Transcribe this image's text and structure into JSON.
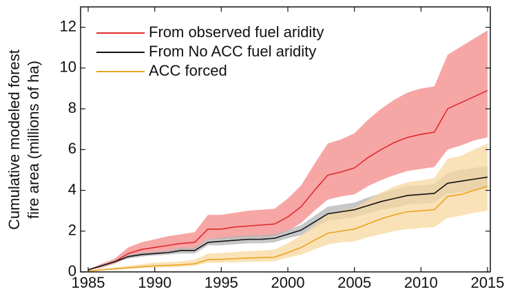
{
  "chart_data": {
    "type": "line",
    "ylabel": [
      "Cumulative modeled forest",
      "fire area (millions of ha)"
    ],
    "x": [
      1985,
      1986,
      1987,
      1988,
      1989,
      1990,
      1991,
      1992,
      1993,
      1994,
      1995,
      1996,
      1997,
      1998,
      1999,
      2000,
      2001,
      2002,
      2003,
      2004,
      2005,
      2006,
      2007,
      2008,
      2009,
      2010,
      2011,
      2012,
      2013,
      2014,
      2015
    ],
    "xlim": [
      1984.43,
      2015.21
    ],
    "xticks": [
      1985,
      1990,
      1995,
      2000,
      2005,
      2010,
      2015
    ],
    "ylim": [
      0,
      13
    ],
    "yticks": [
      0,
      2,
      4,
      6,
      8,
      10,
      12
    ],
    "legend": "upper left",
    "series": [
      {
        "name": "From observed fuel aridity",
        "color": "#e0282a",
        "band_color": "#f7a6a6",
        "values": [
          0.1,
          0.3,
          0.5,
          0.9,
          1.1,
          1.2,
          1.3,
          1.4,
          1.45,
          2.1,
          2.1,
          2.2,
          2.25,
          2.3,
          2.35,
          2.7,
          3.2,
          4.0,
          4.75,
          4.9,
          5.1,
          5.6,
          6.0,
          6.35,
          6.6,
          6.75,
          6.85,
          8.0,
          8.3,
          8.6,
          8.9
        ],
        "lower": [
          0.1,
          0.2,
          0.4,
          0.7,
          0.8,
          0.9,
          1.0,
          1.05,
          1.1,
          1.6,
          1.6,
          1.65,
          1.7,
          1.7,
          1.75,
          2.0,
          2.4,
          3.0,
          3.55,
          3.7,
          3.8,
          4.2,
          4.5,
          4.75,
          4.95,
          5.05,
          5.15,
          6.0,
          6.2,
          6.45,
          6.6
        ],
        "upper": [
          0.1,
          0.4,
          0.65,
          1.2,
          1.45,
          1.6,
          1.75,
          1.85,
          1.95,
          2.8,
          2.8,
          2.9,
          3.0,
          3.05,
          3.1,
          3.6,
          4.25,
          5.3,
          6.3,
          6.5,
          6.8,
          7.45,
          8.0,
          8.45,
          8.8,
          9.0,
          9.1,
          10.65,
          11.05,
          11.45,
          11.85
        ]
      },
      {
        "name": "From No ACC fuel aridity",
        "color": "#111111",
        "band_color": "#b4b4b4",
        "values": [
          0.1,
          0.3,
          0.5,
          0.75,
          0.85,
          0.9,
          0.95,
          1.05,
          1.05,
          1.45,
          1.5,
          1.55,
          1.6,
          1.6,
          1.65,
          1.85,
          2.05,
          2.45,
          2.85,
          2.95,
          3.05,
          3.25,
          3.45,
          3.6,
          3.75,
          3.8,
          3.85,
          4.35,
          4.45,
          4.55,
          4.65
        ],
        "lower": [
          0.1,
          0.25,
          0.45,
          0.65,
          0.75,
          0.8,
          0.85,
          0.9,
          0.9,
          1.3,
          1.3,
          1.35,
          1.4,
          1.4,
          1.45,
          1.65,
          1.8,
          2.15,
          2.5,
          2.6,
          2.7,
          2.85,
          3.05,
          3.15,
          3.3,
          3.35,
          3.4,
          3.85,
          3.9,
          4.0,
          4.1
        ],
        "upper": [
          0.1,
          0.35,
          0.55,
          0.85,
          0.95,
          1.0,
          1.05,
          1.2,
          1.2,
          1.6,
          1.7,
          1.75,
          1.8,
          1.8,
          1.85,
          2.05,
          2.3,
          2.75,
          3.2,
          3.3,
          3.4,
          3.65,
          3.85,
          4.05,
          4.2,
          4.25,
          4.3,
          4.85,
          5.0,
          5.1,
          5.2
        ]
      },
      {
        "name": "ACC forced",
        "color": "#eba21e",
        "band_color": "#f8d8a0",
        "values": [
          0.05,
          0.1,
          0.15,
          0.2,
          0.25,
          0.3,
          0.32,
          0.35,
          0.4,
          0.6,
          0.62,
          0.65,
          0.68,
          0.7,
          0.72,
          0.95,
          1.2,
          1.55,
          1.9,
          2.0,
          2.1,
          2.35,
          2.6,
          2.8,
          2.95,
          3.0,
          3.05,
          3.7,
          3.8,
          4.0,
          4.2
        ],
        "lower": [
          0.04,
          0.07,
          0.1,
          0.15,
          0.18,
          0.22,
          0.23,
          0.25,
          0.3,
          0.45,
          0.45,
          0.47,
          0.5,
          0.5,
          0.52,
          0.7,
          0.85,
          1.1,
          1.35,
          1.45,
          1.5,
          1.7,
          1.85,
          2.0,
          2.1,
          2.15,
          2.2,
          2.65,
          2.75,
          2.9,
          3.0
        ],
        "upper": [
          0.07,
          0.15,
          0.22,
          0.3,
          0.38,
          0.45,
          0.48,
          0.52,
          0.6,
          0.9,
          0.93,
          0.98,
          1.02,
          1.05,
          1.1,
          1.4,
          1.8,
          2.3,
          2.85,
          3.0,
          3.15,
          3.5,
          3.9,
          4.2,
          4.4,
          4.5,
          4.6,
          5.55,
          5.7,
          6.0,
          6.3
        ]
      }
    ]
  }
}
